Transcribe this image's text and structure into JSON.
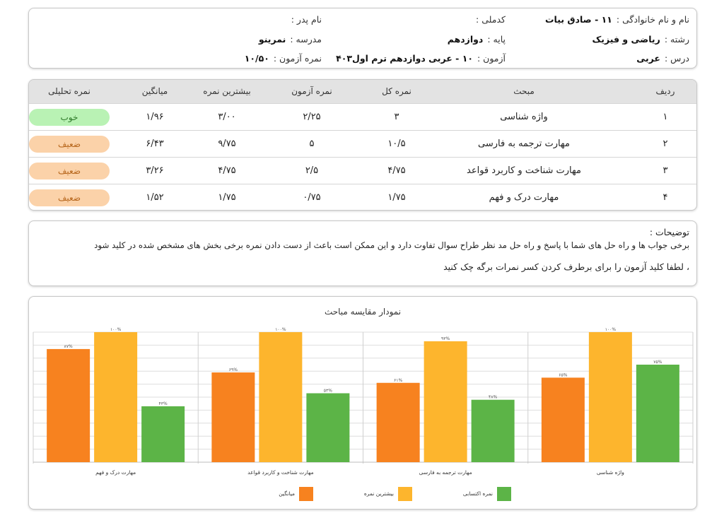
{
  "header": {
    "name_label": "نام و نام خانوادگی :",
    "name_value": "۱۱ - صادق بیات",
    "national_code_label": "کدملی :",
    "national_code_value": "",
    "father_label": "نام پدر :",
    "father_value": "",
    "field_label": "رشته :",
    "field_value": "ریاضی و فیزیک",
    "grade_label": "پایه :",
    "grade_value": "دوازدهم",
    "school_label": "مدرسه :",
    "school_value": "نمرینو",
    "course_label": "درس :",
    "course_value": "عربی",
    "exam_label": "آزمون :",
    "exam_value": "۱۰ - عربی دوازدهم ترم اول۴۰۳",
    "score_label": "نمره آزمون :",
    "score_value": "۱۰/۵۰"
  },
  "table": {
    "headers": {
      "row": "ردیف",
      "topic": "مبحث",
      "total": "نمره کل",
      "exam": "نمره آزمون",
      "max": "بیشترین نمره",
      "avg": "میانگین",
      "analytic": "نمره تحلیلی"
    },
    "rows": [
      {
        "row": "۱",
        "topic": "واژه شناسی",
        "total": "۳",
        "exam": "۲/۲۵",
        "max": "۳/۰۰",
        "avg": "۱/۹۶",
        "analytic": "خوب",
        "status": "good"
      },
      {
        "row": "۲",
        "topic": "مهارت ترجمه به فارسی",
        "total": "۱۰/۵",
        "exam": "۵",
        "max": "۹/۷۵",
        "avg": "۶/۴۳",
        "analytic": "ضعیف",
        "status": "weak"
      },
      {
        "row": "۳",
        "topic": "مهارت شناخت و کاربرد قواعد",
        "total": "۴/۷۵",
        "exam": "۲/۵",
        "max": "۴/۷۵",
        "avg": "۳/۲۶",
        "analytic": "ضعیف",
        "status": "weak"
      },
      {
        "row": "۴",
        "topic": "مهارت درک و فهم",
        "total": "۱/۷۵",
        "exam": "۰/۷۵",
        "max": "۱/۷۵",
        "avg": "۱/۵۲",
        "analytic": "ضعیف",
        "status": "weak"
      }
    ]
  },
  "notes": {
    "title": "توضیحات :",
    "line1": "برخی جواب ها و راه حل های شما با پاسخ و راه حل مد نظر طراح سوال تفاوت دارد و این ممکن است باعث از دست دادن نمره برخی بخش های مشخص شده در کلید شود",
    "line2": "، لطفا کلید آزمون را برای برطرف کردن کسر نمرات برگه چک کنید"
  },
  "chart_data": {
    "type": "bar",
    "title": "نمودار مقایسه مباحث",
    "categories": [
      "مهارت درک و فهم",
      "مهارت شناخت و کاربرد قواعد",
      "مهارت ترجمه به فارسی",
      "واژه شناسی"
    ],
    "series": [
      {
        "name": "میانگین",
        "color": "#f7821f",
        "values": [
          87,
          69,
          61,
          65
        ],
        "labels": [
          "۸۷%",
          "۶۹%",
          "۶۱%",
          "۶۵%"
        ]
      },
      {
        "name": "بیشترین نمره",
        "color": "#fdb52d",
        "values": [
          100,
          100,
          93,
          100
        ],
        "labels": [
          "۱۰۰%",
          "۱۰۰%",
          "۹۳%",
          "۱۰۰%"
        ]
      },
      {
        "name": "نمره اکتسابی",
        "color": "#5cb447",
        "values": [
          43,
          53,
          48,
          75
        ],
        "labels": [
          "۴۳%",
          "۵۳%",
          "۴۸%",
          "۷۵%"
        ]
      }
    ],
    "ylim": [
      0,
      100
    ],
    "grid": true,
    "legend": "bottom"
  }
}
